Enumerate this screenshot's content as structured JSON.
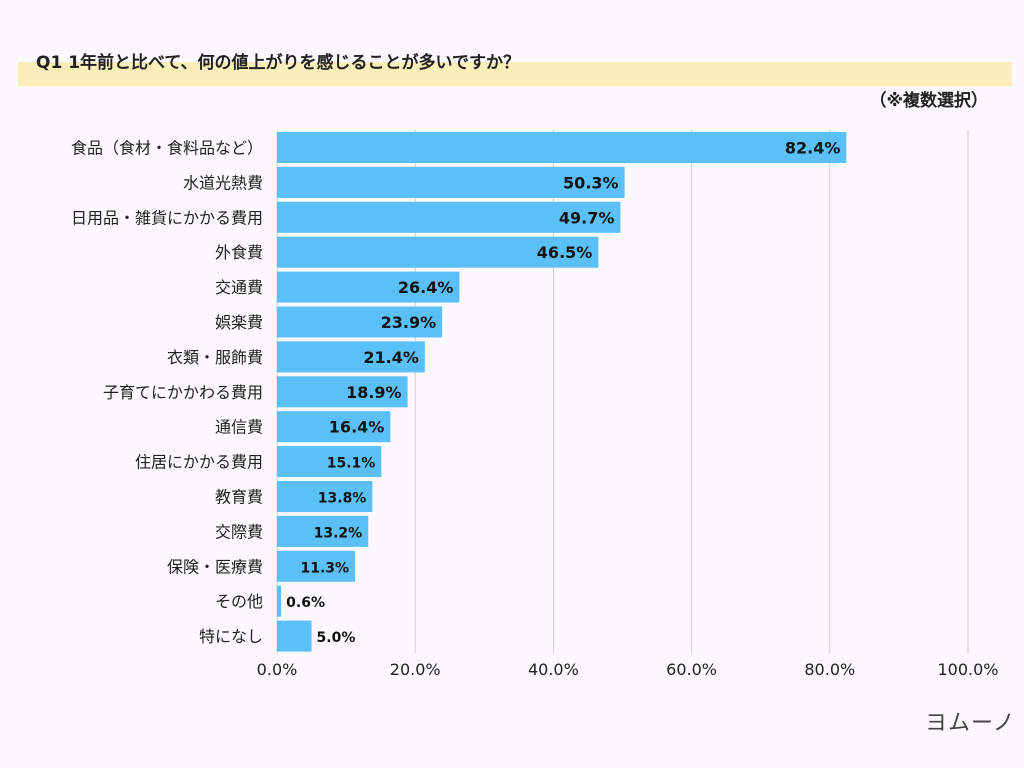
{
  "title": "Q1 1年前と比べて、何の値上がりを感じることが多いですか？",
  "note": "（※複数選択）",
  "logo": "ヨムーノ",
  "chart_data": {
    "type": "bar",
    "orientation": "horizontal",
    "categories": [
      "食品（食材・食料品など）",
      "水道光熱費",
      "日用品・雑貨にかかる費用",
      "外食費",
      "交通費",
      "娯楽費",
      "衣類・服飾費",
      "子育てにかかわる費用",
      "通信費",
      "住居にかかる費用",
      "教育費",
      "交際費",
      "保険・医療費",
      "その他",
      "特になし"
    ],
    "values": [
      82.4,
      50.3,
      49.7,
      46.5,
      26.4,
      23.9,
      21.4,
      18.9,
      16.4,
      15.1,
      13.8,
      13.2,
      11.3,
      0.6,
      5.0
    ],
    "data_labels": [
      "82.4%",
      "50.3%",
      "49.7%",
      "46.5%",
      "26.4%",
      "23.9%",
      "21.4%",
      "18.9%",
      "16.4%",
      "15.1%",
      "13.8%",
      "13.2%",
      "11.3%",
      "0.6%",
      "5.0%"
    ],
    "xlim": [
      0,
      100
    ],
    "xticks": [
      "0.0%",
      "20.0%",
      "40.0%",
      "60.0%",
      "80.0%",
      "100.0%"
    ],
    "grid": true,
    "bar_color": "#5bc0f8",
    "title": "Q1 1年前と比べて、何の値上がりを感じることが多いですか？"
  }
}
